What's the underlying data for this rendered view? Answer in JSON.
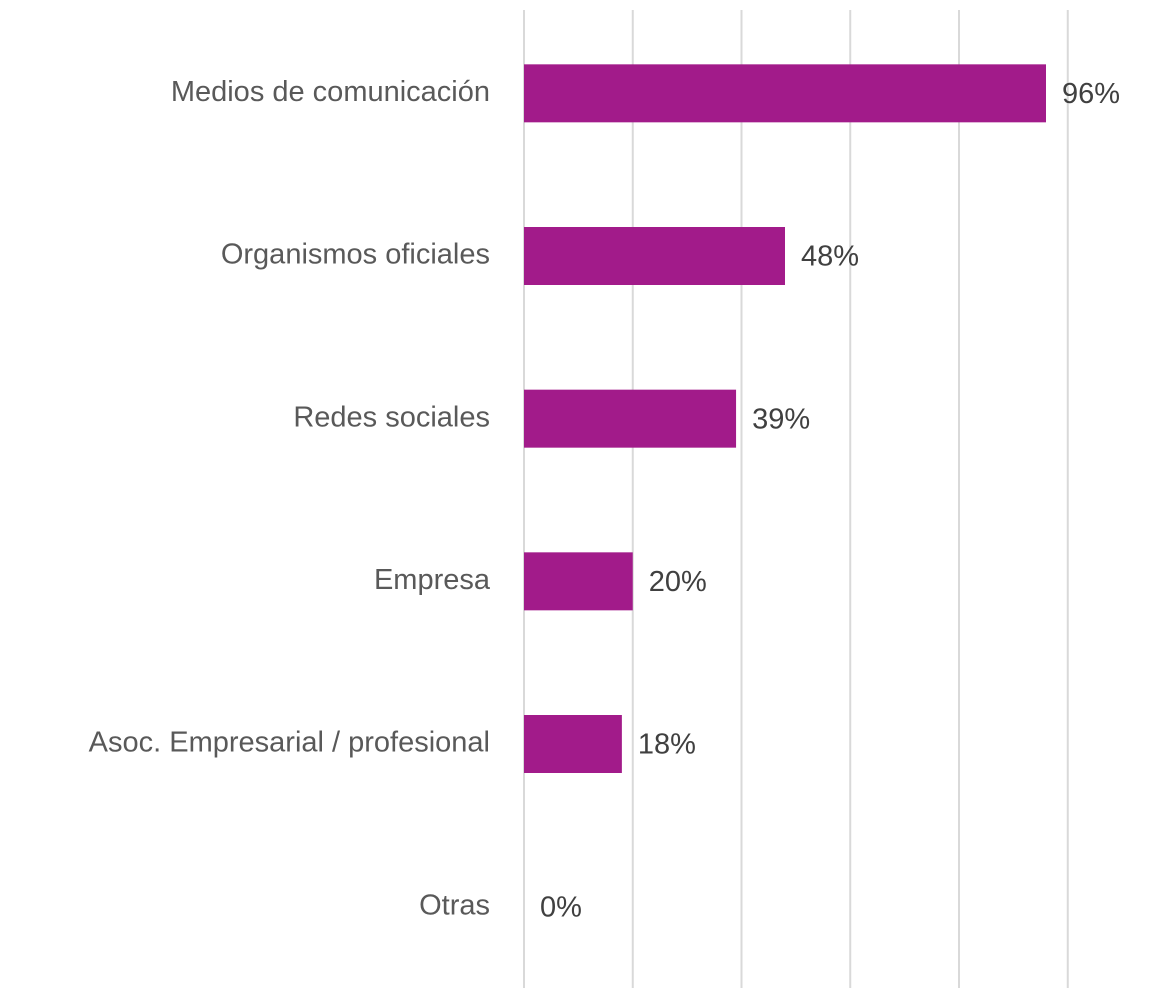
{
  "chart_data": {
    "type": "barh",
    "categories": [
      "Medios de comunicación",
      "Organismos oficiales",
      "Redes sociales",
      "Empresa",
      "Asoc. Empresarial / profesional",
      "Otras"
    ],
    "values": [
      96,
      48,
      39,
      20,
      18,
      0
    ],
    "value_labels": [
      "96%",
      "48%",
      "39%",
      "20%",
      "18%",
      "0%"
    ],
    "color": "#a21b8a",
    "xlim": [
      0,
      100
    ],
    "xticks": [
      0,
      20,
      40,
      60,
      80,
      100
    ],
    "grid": true
  }
}
